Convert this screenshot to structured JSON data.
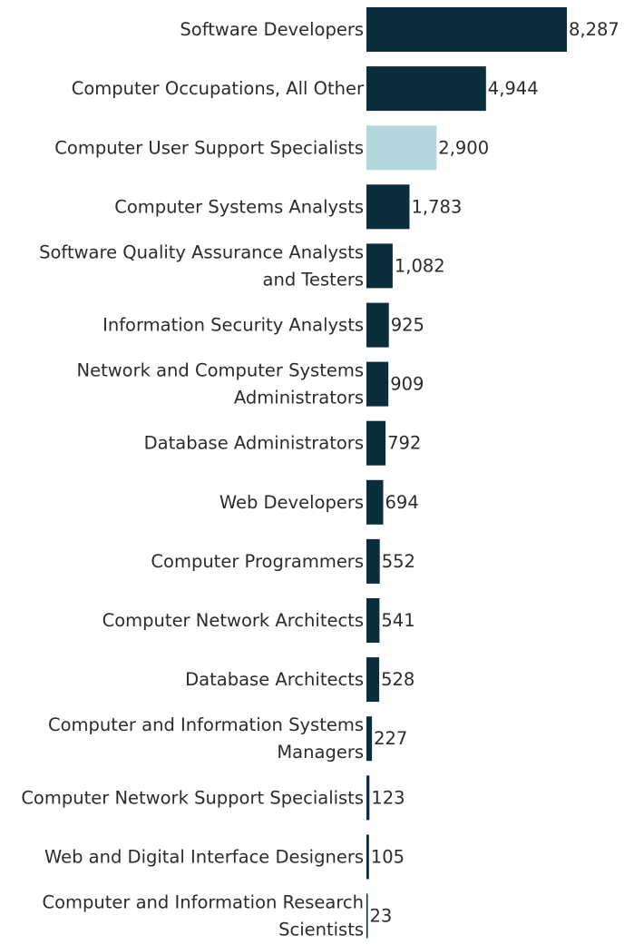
{
  "chart_data": {
    "type": "bar",
    "orientation": "horizontal",
    "categories": [
      [
        "Software Developers"
      ],
      [
        "Computer Occupations, All Other"
      ],
      [
        "Computer User Support Specialists"
      ],
      [
        "Computer Systems Analysts"
      ],
      [
        "Software Quality Assurance Analysts",
        "and Testers"
      ],
      [
        "Information Security Analysts"
      ],
      [
        "Network and Computer Systems",
        "Administrators"
      ],
      [
        "Database Administrators"
      ],
      [
        "Web Developers"
      ],
      [
        "Computer Programmers"
      ],
      [
        "Computer Network Architects"
      ],
      [
        "Database Architects"
      ],
      [
        "Computer and Information Systems",
        "Managers"
      ],
      [
        "Computer Network Support Specialists"
      ],
      [
        "Web and Digital Interface Designers"
      ],
      [
        "Computer and Information Research",
        "Scientists"
      ]
    ],
    "values": [
      8287,
      4944,
      2900,
      1783,
      1082,
      925,
      909,
      792,
      694,
      552,
      541,
      528,
      227,
      123,
      105,
      23
    ],
    "value_labels": [
      "8,287",
      "4,944",
      "2,900",
      "1,783",
      "1,082",
      "925",
      "909",
      "792",
      "694",
      "552",
      "541",
      "528",
      "227",
      "123",
      "105",
      "23"
    ],
    "highlight_index": 2,
    "colors": {
      "bar": "#0b2d3c",
      "highlight": "#b3d7dc"
    },
    "xlim": [
      0,
      8287
    ],
    "grid": false,
    "legend": "none"
  }
}
